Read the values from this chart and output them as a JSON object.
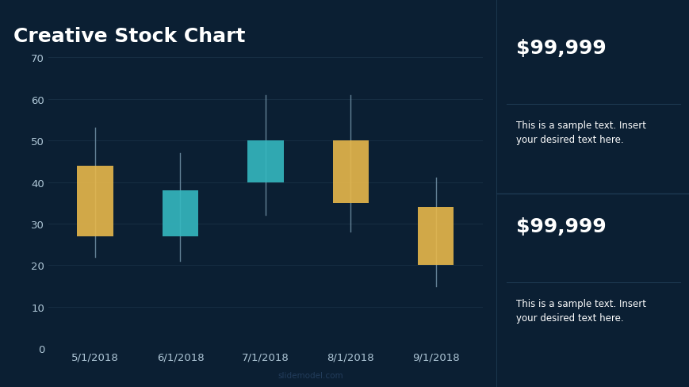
{
  "title": "Creative Stock Chart",
  "background_color": "#0b1f33",
  "chart_bg_color": "#0b1f33",
  "title_color": "#ffffff",
  "title_fontsize": 18,
  "axis_label_color": "#b0c8d8",
  "grid_color": "#162d42",
  "categories": [
    "5/1/2018",
    "6/1/2018",
    "7/1/2018",
    "8/1/2018",
    "9/1/2018"
  ],
  "bar_bottoms": [
    27,
    27,
    40,
    35,
    20
  ],
  "bar_tops": [
    44,
    38,
    50,
    50,
    34
  ],
  "wick_lows": [
    22,
    21,
    32,
    28,
    15
  ],
  "wick_highs": [
    53,
    47,
    61,
    61,
    41
  ],
  "bar_colors": [
    "#e8b84b",
    "#35b8c0",
    "#35b8c0",
    "#e8b84b",
    "#e8b84b"
  ],
  "wick_color": "#7a9ab0",
  "ylim": [
    0,
    70
  ],
  "yticks": [
    0,
    10,
    20,
    30,
    40,
    50,
    60,
    70
  ],
  "divider_color": "#1e3a52",
  "price1": "$99,999",
  "price2": "$99,999",
  "price_fontsize": 18,
  "desc_text": "This is a sample text. Insert\nyour desired text here.",
  "desc_fontsize": 8.5,
  "watermark": "slidemodel.com",
  "watermark_color": "#254060"
}
